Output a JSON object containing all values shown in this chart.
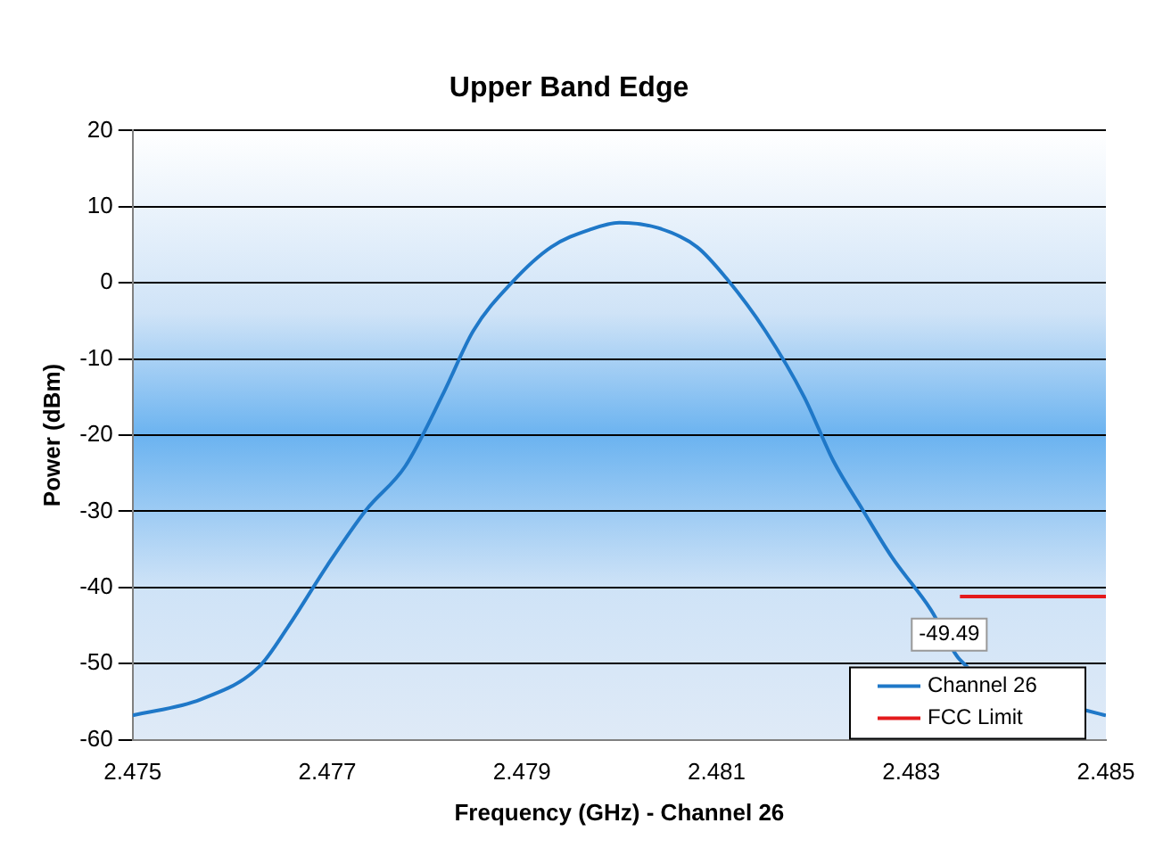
{
  "chart_data": {
    "type": "line",
    "title": "Upper Band Edge",
    "xlabel": "Frequency (GHz) - Channel 26",
    "ylabel": "Power (dBm)",
    "xlim": [
      2.475,
      2.485
    ],
    "xticks": [
      2.475,
      2.477,
      2.479,
      2.481,
      2.483,
      2.485
    ],
    "ylim": [
      -60,
      20
    ],
    "yticks": [
      -60,
      -50,
      -40,
      -30,
      -20,
      -10,
      0,
      10,
      20
    ],
    "grid": "y",
    "legend": "bottom right",
    "marker": "none",
    "line_style": "solid",
    "annotations": [
      {
        "text": "-49.49",
        "x": 2.4835,
        "y": -49.49
      }
    ],
    "series": [
      {
        "name": "Channel 26",
        "color": "#1f78c8",
        "x": [
          2.475,
          2.4757,
          2.4763,
          2.4766,
          2.477,
          2.4774,
          2.4778,
          2.4782,
          2.4785,
          2.4789,
          2.4793,
          2.4797,
          2.48,
          2.4804,
          2.4808,
          2.4811,
          2.4815,
          2.4819,
          2.4822,
          2.4825,
          2.4828,
          2.4832,
          2.4835,
          2.4849,
          2.485
        ],
        "values": [
          -56.8,
          -54.7,
          -50.4,
          -45.1,
          -37.1,
          -29.8,
          -24.1,
          -14.3,
          -6.3,
          0.1,
          4.7,
          7.0,
          7.9,
          7.2,
          4.7,
          0.6,
          -6.3,
          -15.0,
          -23.4,
          -29.8,
          -36.0,
          -42.9,
          -49.5,
          -56.5,
          -56.8
        ]
      },
      {
        "name": "FCC Limit",
        "color": "#e41a1c",
        "x": [
          2.4835,
          2.485
        ],
        "values": [
          -41.2,
          -41.2
        ]
      }
    ]
  }
}
